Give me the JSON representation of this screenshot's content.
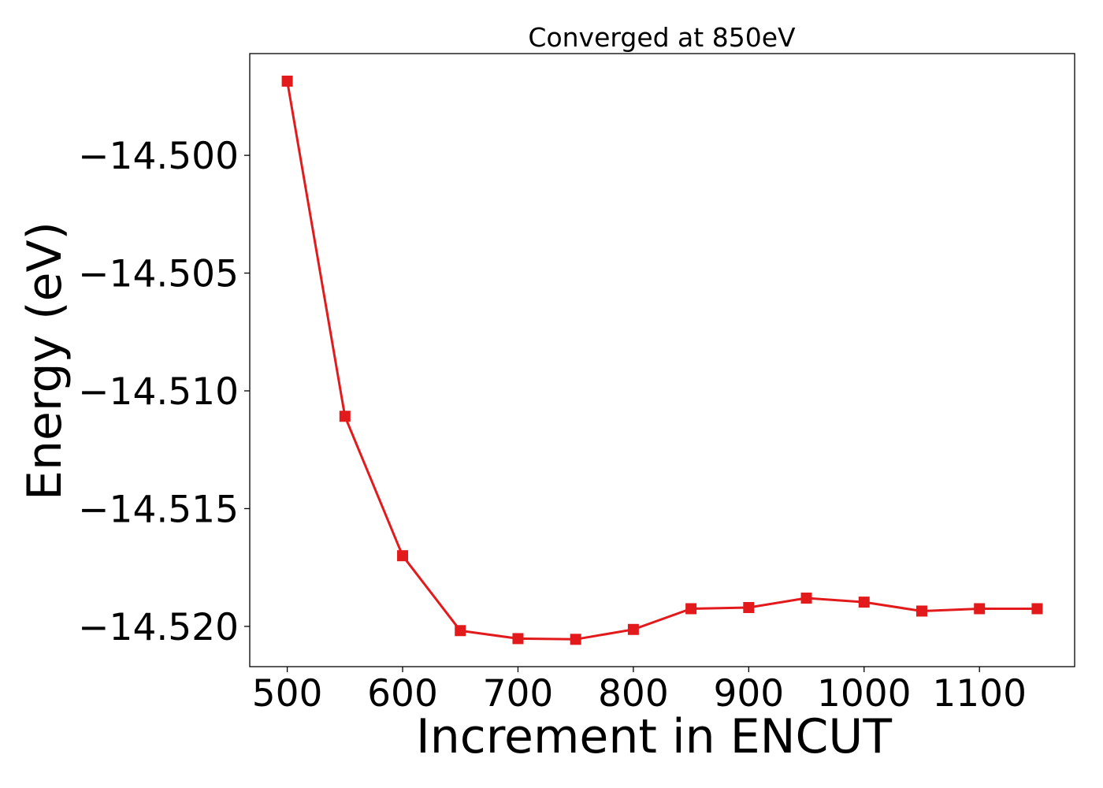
{
  "chart_data": {
    "type": "line",
    "title": "Converged at 850eV",
    "xlabel": "Increment in ENCUT",
    "ylabel": "Energy (eV)",
    "x": [
      500,
      550,
      600,
      650,
      700,
      750,
      800,
      850,
      900,
      950,
      1000,
      1050,
      1100,
      1150
    ],
    "series": [
      {
        "values": [
          -14.49685,
          -14.51108,
          -14.517,
          -14.52018,
          -14.52052,
          -14.52055,
          -14.52013,
          -14.51925,
          -14.5192,
          -14.5188,
          -14.51897,
          -14.51935,
          -14.51925,
          -14.51925
        ],
        "color": "#e31a1c",
        "marker": "square"
      }
    ],
    "xlim": [
      467.5,
      1182.5
    ],
    "ylim": [
      -14.52171,
      -14.49568
    ],
    "xticks": [
      500,
      600,
      700,
      800,
      900,
      1000,
      1100
    ],
    "xtick_labels": [
      "500",
      "600",
      "700",
      "800",
      "900",
      "1000",
      "1100"
    ],
    "yticks": [
      -14.5,
      -14.505,
      -14.51,
      -14.515,
      -14.52
    ],
    "ytick_labels": [
      "−14.500",
      "−14.505",
      "−14.510",
      "−14.515",
      "−14.520"
    ],
    "grid": false,
    "legend": "none"
  }
}
